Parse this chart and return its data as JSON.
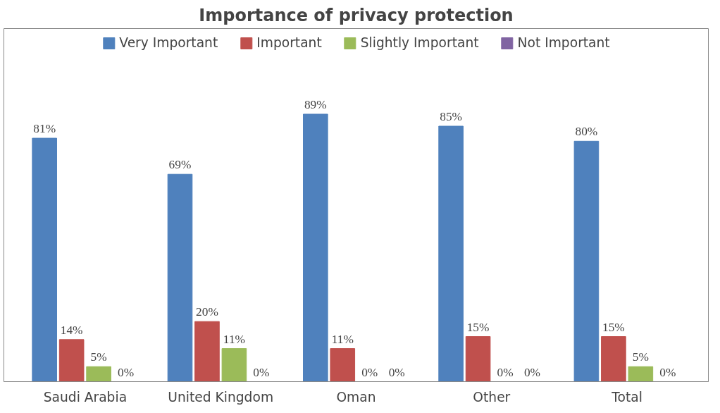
{
  "chart_data": {
    "type": "bar",
    "title": "Importance of privacy protection",
    "categories": [
      "Saudi Arabia",
      "United Kingdom",
      "Oman",
      "Other",
      "Total"
    ],
    "series": [
      {
        "name": "Very Important",
        "color": "#4f81bd",
        "values": [
          81,
          69,
          89,
          85,
          80
        ],
        "value_labels": [
          "81%",
          "69%",
          "89%",
          "85%",
          "80%"
        ]
      },
      {
        "name": "Important",
        "color": "#c0504d",
        "values": [
          14,
          20,
          11,
          15,
          15
        ],
        "value_labels": [
          "14%",
          "20%",
          "11%",
          "15%",
          "15%"
        ]
      },
      {
        "name": "Slightly Important",
        "color": "#9bbb59",
        "values": [
          5,
          11,
          0,
          0,
          5
        ],
        "value_labels": [
          "5%",
          "11%",
          "0%",
          "0%",
          "5%"
        ]
      },
      {
        "name": "Not Important",
        "color": "#8064a2",
        "values": [
          0,
          0,
          0,
          0,
          0
        ],
        "value_labels": [
          "0%",
          "0%",
          "0%",
          "0%",
          "0%"
        ]
      }
    ],
    "legend": "top"
  }
}
